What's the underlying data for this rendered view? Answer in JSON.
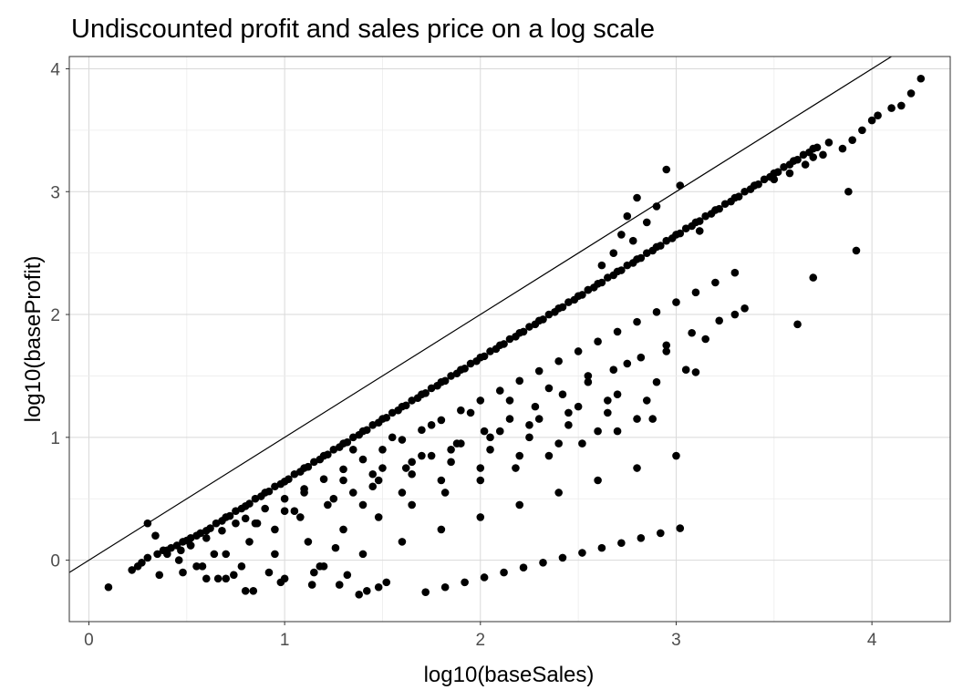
{
  "chart_data": {
    "type": "scatter",
    "title": "Undiscounted profit and  sales price on a log scale",
    "xlabel": "log10(baseSales)",
    "ylabel": "log10(baseProfit)",
    "xlim": [
      -0.1,
      4.4
    ],
    "ylim": [
      -0.5,
      4.1
    ],
    "xticks": [
      0,
      1,
      2,
      3,
      4
    ],
    "yticks": [
      0,
      1,
      2,
      3,
      4
    ],
    "xtick_labels": [
      "0",
      "1",
      "2",
      "3",
      "4"
    ],
    "ytick_labels": [
      "0",
      "1",
      "2",
      "3",
      "4"
    ],
    "grid": true,
    "legend": "none",
    "point_color": "#000000",
    "reference_line": {
      "intercept": 0,
      "slope": 1,
      "color": "#000000"
    },
    "series": [
      {
        "x": [
          0.1,
          0.22,
          0.25,
          0.27,
          0.3,
          0.35,
          0.36,
          0.38,
          0.42,
          0.45,
          0.47,
          0.48,
          0.5,
          0.52,
          0.55,
          0.57,
          0.6,
          0.62,
          0.65,
          0.68,
          0.7,
          0.72,
          0.75,
          0.78,
          0.8,
          0.82,
          0.85,
          0.88,
          0.9,
          0.92,
          0.95,
          0.98,
          1.0,
          1.02,
          1.05,
          1.08,
          1.1,
          1.12,
          1.15,
          1.18,
          1.2,
          1.22,
          1.25,
          1.28,
          1.3,
          1.32,
          1.35,
          1.38,
          1.4,
          1.42,
          1.45,
          1.48,
          1.5,
          1.52,
          1.55,
          1.58,
          1.6,
          1.62,
          1.65,
          1.68,
          1.7,
          1.72,
          1.75,
          1.78,
          1.8,
          1.82,
          1.85,
          1.88,
          1.9,
          1.92,
          1.95,
          1.98,
          2.0,
          2.02,
          2.05,
          2.08,
          2.1,
          2.12,
          2.15,
          2.18,
          2.2,
          2.22,
          2.25,
          2.28,
          2.3,
          2.32,
          2.35,
          2.38,
          2.4,
          2.42,
          2.45,
          2.48,
          2.5,
          2.52,
          2.55,
          2.58,
          2.6,
          2.62,
          2.65,
          2.68,
          2.7,
          2.72,
          2.75,
          2.78,
          2.8,
          2.82,
          2.85,
          2.88,
          2.9,
          2.92,
          2.95,
          2.98,
          3.0,
          3.02,
          3.05,
          3.08,
          3.1,
          3.12,
          3.15,
          3.18,
          3.2,
          3.22,
          3.25,
          3.28,
          3.3,
          3.32,
          3.35,
          3.38,
          3.4,
          3.42,
          3.45,
          3.48,
          3.5,
          3.52,
          3.55,
          3.58,
          3.6,
          3.62,
          3.65,
          3.68,
          3.7,
          3.72,
          3.78,
          0.4,
          0.52,
          0.6,
          0.68,
          0.75,
          0.8,
          0.9,
          1.0,
          1.1,
          1.2,
          1.3,
          1.4,
          1.5,
          1.6,
          1.7,
          1.8,
          1.9,
          2.0,
          2.1,
          2.2,
          2.3,
          2.4,
          2.5,
          2.6,
          2.7,
          2.8,
          2.9,
          3.0,
          3.1,
          3.2,
          3.3,
          0.55,
          0.7,
          0.82,
          0.95,
          1.08,
          1.22,
          1.35,
          1.48,
          1.62,
          1.75,
          1.88,
          2.02,
          2.15,
          2.28,
          2.42,
          2.55,
          2.68,
          2.82,
          2.95,
          3.08,
          3.22,
          3.35,
          0.6,
          0.78,
          0.95,
          1.12,
          1.3,
          1.48,
          1.65,
          1.82,
          2.0,
          2.18,
          2.35,
          2.52,
          2.7,
          2.88,
          0.8,
          1.0,
          1.2,
          1.4,
          1.6,
          1.8,
          2.0,
          2.2,
          2.4,
          2.6,
          2.8,
          3.0,
          0.85,
          1.05,
          1.25,
          1.45,
          1.65,
          1.85,
          2.05,
          2.25,
          2.45,
          2.65,
          2.85,
          1.1,
          1.3,
          1.5,
          1.7,
          1.9,
          2.1,
          2.3,
          2.5,
          2.7,
          2.9,
          3.05,
          1.35,
          1.55,
          1.75,
          1.95,
          2.15,
          2.35,
          2.55,
          2.75,
          2.95,
          3.15,
          1.4,
          1.6,
          1.8,
          2.0,
          2.2,
          2.4,
          2.6,
          2.8,
          1.45,
          1.65,
          1.85,
          2.05,
          2.25,
          2.45,
          2.65,
          1.72,
          1.82,
          1.92,
          2.02,
          2.12,
          2.22,
          2.32,
          2.42,
          2.52,
          2.62,
          2.72,
          2.82,
          2.92,
          3.02,
          1.38,
          1.42,
          1.48,
          1.52,
          0.48,
          0.58,
          0.66,
          0.84,
          0.98,
          1.15,
          1.28,
          1.32,
          1.18,
          0.74,
          0.86,
          1.0,
          1.26,
          1.14,
          0.92,
          0.7,
          0.64,
          0.52,
          0.46,
          0.4,
          0.34,
          0.3,
          3.4,
          3.5,
          3.58,
          3.66,
          3.7,
          3.75,
          3.85,
          3.9,
          3.95,
          4.0,
          4.03,
          4.1,
          4.15,
          4.2,
          4.25,
          3.62,
          3.88,
          3.92,
          3.7,
          3.3,
          3.1,
          3.12,
          2.9,
          2.95,
          3.02,
          2.8,
          2.72,
          2.68,
          2.55,
          2.62,
          2.75,
          2.85,
          2.78
        ],
        "y": [
          -0.22,
          -0.08,
          -0.05,
          -0.02,
          0.02,
          0.05,
          -0.12,
          0.08,
          0.1,
          0.12,
          0.08,
          0.15,
          0.16,
          0.18,
          0.2,
          0.22,
          0.24,
          0.26,
          0.3,
          0.32,
          0.35,
          0.36,
          0.4,
          0.42,
          0.44,
          0.46,
          0.5,
          0.52,
          0.55,
          0.56,
          0.6,
          0.62,
          0.64,
          0.66,
          0.7,
          0.72,
          0.75,
          0.76,
          0.8,
          0.82,
          0.85,
          0.86,
          0.9,
          0.92,
          0.95,
          0.96,
          1.0,
          1.02,
          1.05,
          1.06,
          1.1,
          1.12,
          1.15,
          1.16,
          1.2,
          1.22,
          1.25,
          1.26,
          1.3,
          1.32,
          1.35,
          1.36,
          1.4,
          1.42,
          1.45,
          1.46,
          1.5,
          1.52,
          1.55,
          1.56,
          1.6,
          1.62,
          1.65,
          1.66,
          1.7,
          1.72,
          1.75,
          1.76,
          1.8,
          1.82,
          1.85,
          1.86,
          1.9,
          1.92,
          1.95,
          1.96,
          2.0,
          2.02,
          2.05,
          2.06,
          2.1,
          2.12,
          2.15,
          2.16,
          2.2,
          2.22,
          2.25,
          2.26,
          2.3,
          2.32,
          2.35,
          2.36,
          2.4,
          2.42,
          2.45,
          2.46,
          2.5,
          2.52,
          2.55,
          2.56,
          2.6,
          2.62,
          2.65,
          2.66,
          2.7,
          2.72,
          2.75,
          2.76,
          2.8,
          2.82,
          2.85,
          2.86,
          2.9,
          2.92,
          2.95,
          2.96,
          3.0,
          3.02,
          3.05,
          3.06,
          3.1,
          3.12,
          3.15,
          3.16,
          3.2,
          3.22,
          3.25,
          3.26,
          3.3,
          3.32,
          3.35,
          3.36,
          3.4,
          0.05,
          0.12,
          0.18,
          0.24,
          0.3,
          0.34,
          0.42,
          0.5,
          0.58,
          0.66,
          0.74,
          0.82,
          0.9,
          0.98,
          1.06,
          1.14,
          1.22,
          1.3,
          1.38,
          1.46,
          1.54,
          1.62,
          1.7,
          1.78,
          1.86,
          1.94,
          2.02,
          2.1,
          2.18,
          2.26,
          2.34,
          -0.05,
          0.05,
          0.15,
          0.25,
          0.35,
          0.45,
          0.55,
          0.65,
          0.75,
          0.85,
          0.95,
          1.05,
          1.15,
          1.25,
          1.35,
          1.45,
          1.55,
          1.65,
          1.75,
          1.85,
          1.95,
          2.05,
          -0.15,
          -0.05,
          0.05,
          0.15,
          0.25,
          0.35,
          0.45,
          0.55,
          0.65,
          0.75,
          0.85,
          0.95,
          1.05,
          1.15,
          -0.25,
          -0.15,
          -0.05,
          0.05,
          0.15,
          0.25,
          0.35,
          0.45,
          0.55,
          0.65,
          0.75,
          0.85,
          0.3,
          0.4,
          0.5,
          0.6,
          0.7,
          0.8,
          0.9,
          1.0,
          1.1,
          1.2,
          1.3,
          0.55,
          0.65,
          0.75,
          0.85,
          0.95,
          1.05,
          1.15,
          1.25,
          1.35,
          1.45,
          1.55,
          0.9,
          1.0,
          1.1,
          1.2,
          1.3,
          1.4,
          1.5,
          1.6,
          1.7,
          1.8,
          0.45,
          0.55,
          0.65,
          0.75,
          0.85,
          0.95,
          1.05,
          1.15,
          0.7,
          0.8,
          0.9,
          1.0,
          1.1,
          1.2,
          1.3,
          -0.26,
          -0.22,
          -0.18,
          -0.14,
          -0.1,
          -0.06,
          -0.02,
          0.02,
          0.06,
          0.1,
          0.14,
          0.18,
          0.22,
          0.26,
          -0.28,
          -0.25,
          -0.22,
          -0.18,
          -0.1,
          -0.05,
          -0.15,
          -0.25,
          -0.18,
          -0.1,
          -0.2,
          -0.12,
          -0.05,
          -0.12,
          0.3,
          0.4,
          0.1,
          -0.2,
          -0.1,
          -0.15,
          0.05,
          0.12,
          0.0,
          0.08,
          0.2,
          0.3,
          3.05,
          3.1,
          3.15,
          3.22,
          3.28,
          3.3,
          3.35,
          3.42,
          3.5,
          3.58,
          3.62,
          3.68,
          3.7,
          3.8,
          3.92,
          1.92,
          3.0,
          2.52,
          2.3,
          2.0,
          1.53,
          2.68,
          2.88,
          3.18,
          3.05,
          2.95,
          2.65,
          2.5,
          2.2,
          2.4,
          2.8,
          2.75,
          2.6
        ]
      }
    ]
  }
}
